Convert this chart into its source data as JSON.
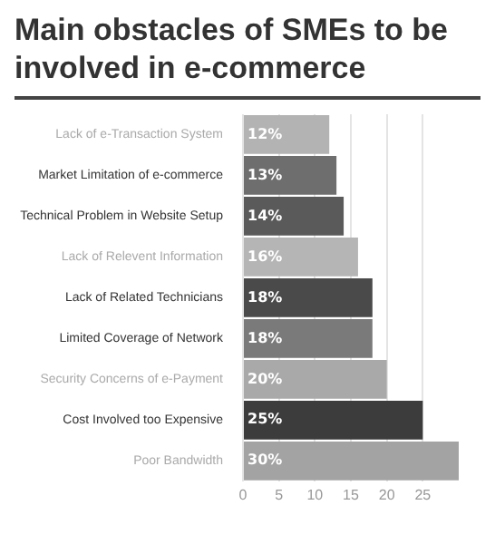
{
  "chart_data": {
    "type": "bar",
    "orientation": "horizontal",
    "title": "Main obstacles of SMEs to be involved in e-commerce",
    "categories": [
      "Lack of e-Transaction System",
      "Market Limitation of e-commerce",
      "Technical Problem in Website Setup",
      "Lack of Relevent Information",
      "Lack of Related Technicians",
      "Limited Coverage of Network",
      "Security Concerns of e-Payment",
      "Cost Involved too Expensive",
      "Poor Bandwidth"
    ],
    "values": [
      12,
      13,
      14,
      16,
      18,
      18,
      20,
      25,
      30
    ],
    "value_labels": [
      "12%",
      "13%",
      "14%",
      "16%",
      "18%",
      "18%",
      "20%",
      "25%",
      "30%"
    ],
    "colors": [
      "#b3b3b3",
      "#6e6e6e",
      "#5a5a5a",
      "#b5b5b5",
      "#4a4a4a",
      "#7a7a7a",
      "#a9a9a9",
      "#3c3c3c",
      "#a3a3a3"
    ],
    "xlim": [
      0,
      30
    ],
    "xticks": [
      0,
      5,
      10,
      15,
      20,
      25
    ],
    "grid": "x",
    "legend": false
  }
}
